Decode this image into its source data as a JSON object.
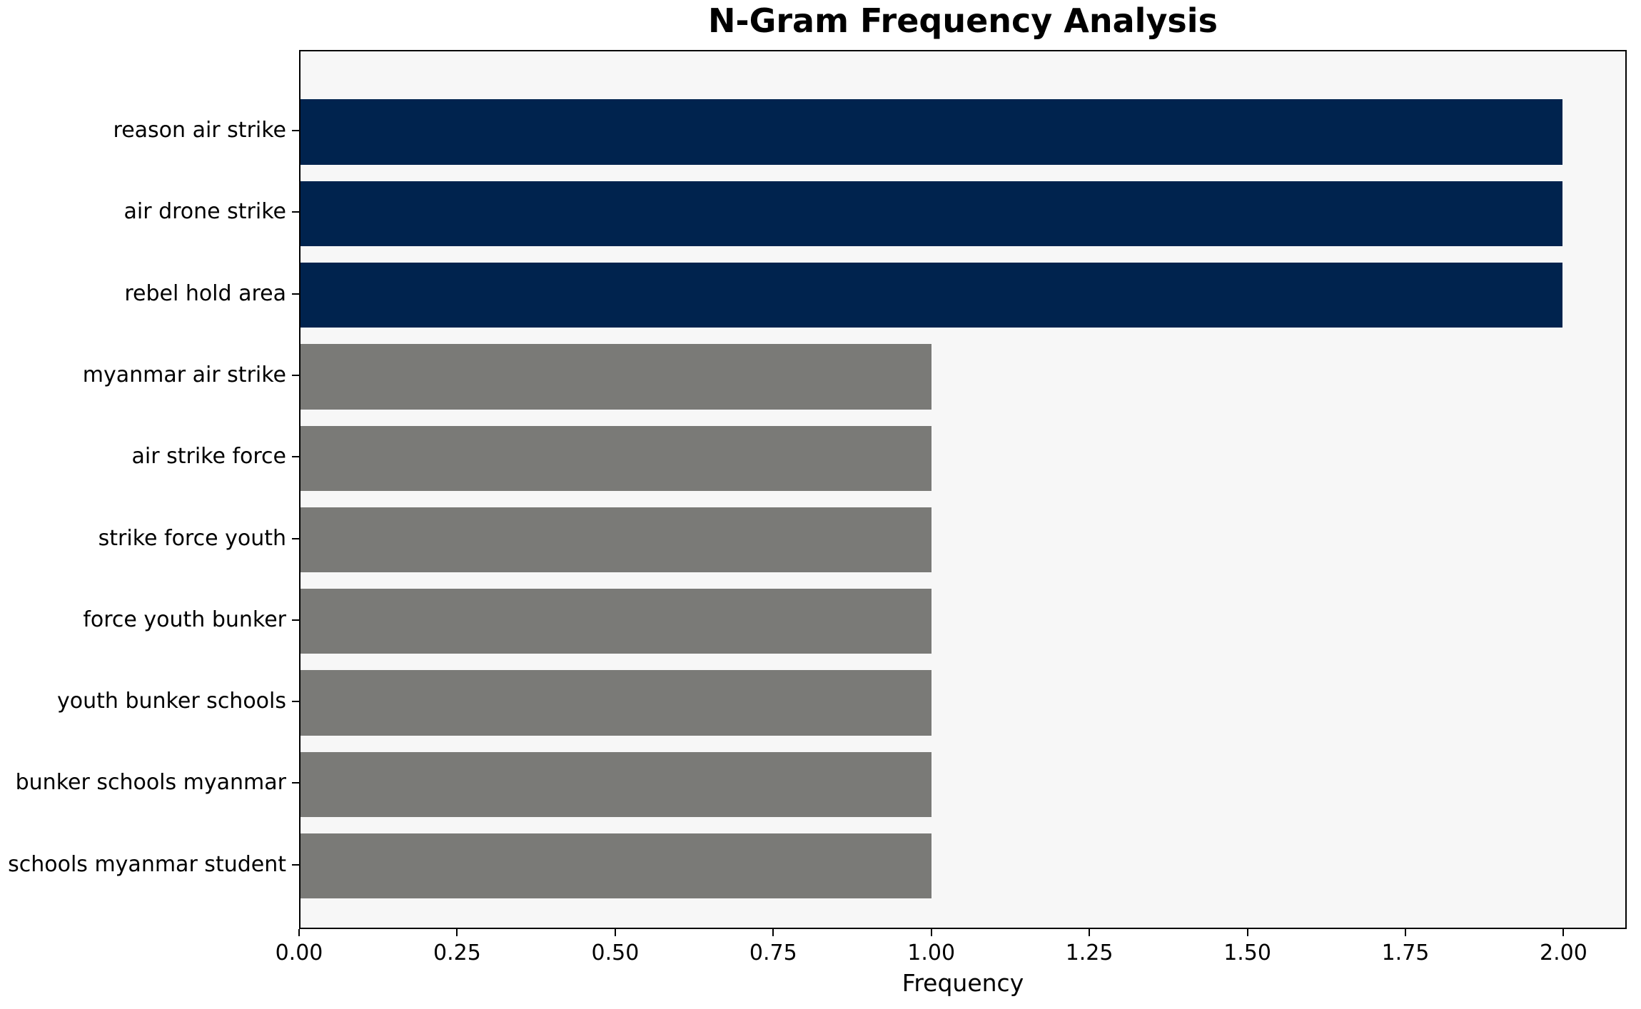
{
  "title": "N-Gram Frequency Analysis",
  "x_axis_label": "Frequency",
  "chart_data": {
    "type": "bar",
    "orientation": "horizontal",
    "title": "N-Gram Frequency Analysis",
    "xlabel": "Frequency",
    "ylabel": "",
    "categories": [
      "reason air strike",
      "air drone strike",
      "rebel hold area",
      "myanmar air strike",
      "air strike force",
      "strike force youth",
      "force youth bunker",
      "youth bunker schools",
      "bunker schools myanmar",
      "schools myanmar student"
    ],
    "values": [
      2,
      2,
      2,
      1,
      1,
      1,
      1,
      1,
      1,
      1
    ],
    "bar_colors": [
      "#00234e",
      "#00234e",
      "#00234e",
      "#7a7a77",
      "#7a7a77",
      "#7a7a77",
      "#7a7a77",
      "#7a7a77",
      "#7a7a77",
      "#7a7a77"
    ],
    "xlim": [
      0,
      2.1
    ],
    "xticks": [
      0.0,
      0.25,
      0.5,
      0.75,
      1.0,
      1.25,
      1.5,
      1.75,
      2.0
    ],
    "xtick_labels": [
      "0.00",
      "0.25",
      "0.50",
      "0.75",
      "1.00",
      "1.25",
      "1.50",
      "1.75",
      "2.00"
    ],
    "grid": false,
    "legend": null,
    "colors": {
      "highlight_bar": "#00234e",
      "normal_bar": "#7a7a77",
      "plot_background": "#f7f7f7",
      "figure_background": "#ffffff",
      "frame": "#000000",
      "text": "#000000"
    }
  }
}
